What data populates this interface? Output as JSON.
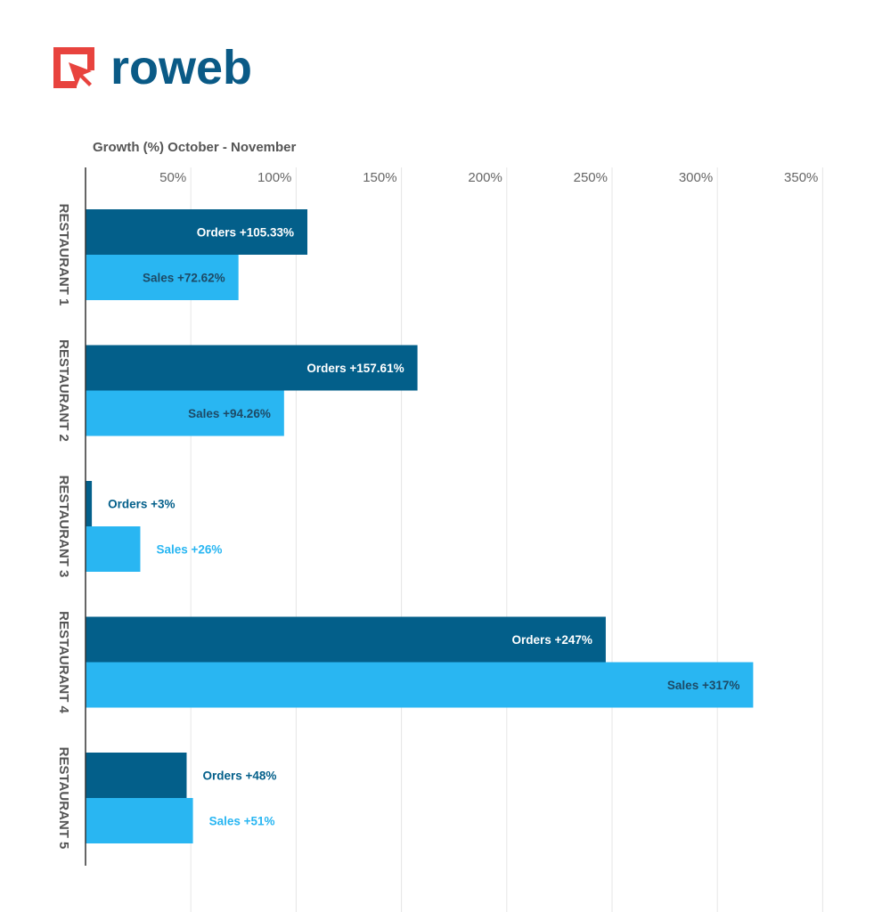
{
  "brand": {
    "name": "roweb",
    "logo_icon": "cursor-in-square-icon",
    "icon_color": "#e8433e",
    "text_color": "#0a5a86"
  },
  "colors": {
    "orders": "#035f8a",
    "sales": "#29b6f2",
    "grid": "#e6e6e6",
    "axis": "#333333"
  },
  "chart_data": {
    "type": "bar",
    "orientation": "horizontal",
    "title": "Growth (%) October - November",
    "xlim": [
      0,
      350
    ],
    "ticks": [
      50,
      100,
      150,
      200,
      250,
      300,
      350
    ],
    "tick_labels": [
      "50%",
      "100%",
      "150%",
      "200%",
      "250%",
      "300%",
      "350%"
    ],
    "grid": true,
    "categories": [
      "RESTAURANT 1",
      "RESTAURANT 2",
      "RESTAURANT 3",
      "RESTAURANT 4",
      "RESTAURANT 5"
    ],
    "series": [
      {
        "key": "orders",
        "values": [
          105.33,
          157.61,
          3,
          247,
          48
        ],
        "labels": [
          "Orders +105.33%",
          "Orders +157.61%",
          "Orders +3%",
          "Orders +247%",
          "Orders +48%"
        ]
      },
      {
        "key": "sales",
        "values": [
          72.62,
          94.26,
          26,
          317,
          51
        ],
        "labels": [
          "Sales +72.62%",
          "Sales +94.26%",
          "Sales +26%",
          "Sales +317%",
          "Sales +51%"
        ]
      }
    ]
  }
}
